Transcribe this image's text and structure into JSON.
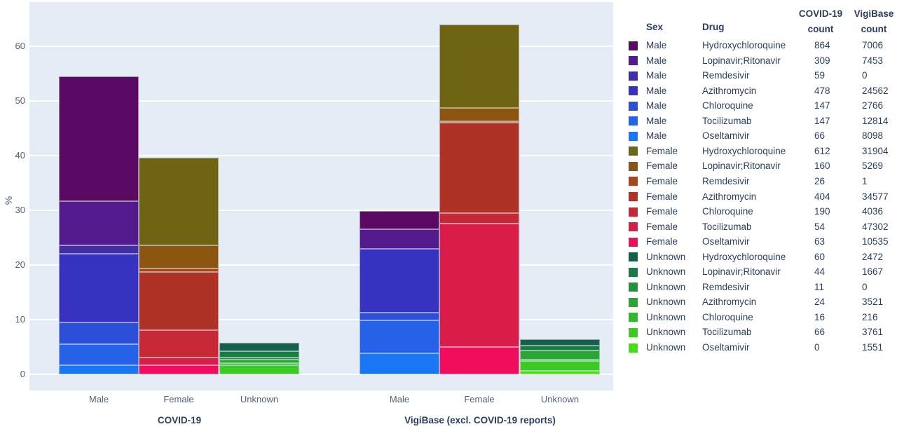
{
  "chart_data": {
    "type": "bar",
    "stacked": true,
    "title": "",
    "ylabel": "%",
    "yticks": [
      0,
      10,
      20,
      30,
      40,
      50,
      60
    ],
    "ylim": [
      -2.9,
      68.1
    ],
    "grid": true,
    "legend_position": "right",
    "groups": [
      "Male",
      "Female",
      "Unknown"
    ],
    "drugs": [
      "Hydroxychloroquine",
      "Lopinavir;Ritonavir",
      "Remdesivir",
      "Azithromycin",
      "Chloroquine",
      "Tocilizumab",
      "Oseltamivir"
    ],
    "stack_order_bottom_to_top": [
      "Oseltamivir",
      "Tocilizumab",
      "Chloroquine",
      "Azithromycin",
      "Remdesivir",
      "Lopinavir;Ritonavir",
      "Hydroxychloroquine"
    ],
    "facets": [
      {
        "title": "COVID-19",
        "count_key": "covid_count",
        "categories": [
          "Male",
          "Female",
          "Unknown"
        ]
      },
      {
        "title": "VigiBase (excl. COVID-19 reports)",
        "count_key": "vigibase_count",
        "categories": [
          "Male",
          "Female",
          "Unknown"
        ]
      }
    ],
    "bar_height_rule": "segment % = count / sum of all counts in facet * 100",
    "rows": [
      {
        "sex": "Male",
        "drug": "Hydroxychloroquine",
        "covid_count": 864,
        "vigibase_count": 7006,
        "color": "#5a0a63"
      },
      {
        "sex": "Male",
        "drug": "Lopinavir;Ritonavir",
        "covid_count": 309,
        "vigibase_count": 7453,
        "color": "#521a8c"
      },
      {
        "sex": "Male",
        "drug": "Remdesivir",
        "covid_count": 59,
        "vigibase_count": 0,
        "color": "#432da3"
      },
      {
        "sex": "Male",
        "drug": "Azithromycin",
        "covid_count": 478,
        "vigibase_count": 24562,
        "color": "#3732c0"
      },
      {
        "sex": "Male",
        "drug": "Chloroquine",
        "covid_count": 147,
        "vigibase_count": 2766,
        "color": "#2c4fd8"
      },
      {
        "sex": "Male",
        "drug": "Tocilizumab",
        "covid_count": 147,
        "vigibase_count": 12814,
        "color": "#2562e8"
      },
      {
        "sex": "Male",
        "drug": "Oseltamivir",
        "covid_count": 66,
        "vigibase_count": 8098,
        "color": "#1a76f2"
      },
      {
        "sex": "Female",
        "drug": "Hydroxychloroquine",
        "covid_count": 612,
        "vigibase_count": 31904,
        "color": "#6e6414"
      },
      {
        "sex": "Female",
        "drug": "Lopinavir;Ritonavir",
        "covid_count": 160,
        "vigibase_count": 5269,
        "color": "#8c550f"
      },
      {
        "sex": "Female",
        "drug": "Remdesivir",
        "covid_count": 26,
        "vigibase_count": 1,
        "color": "#a4471d"
      },
      {
        "sex": "Female",
        "drug": "Azithromycin",
        "covid_count": 404,
        "vigibase_count": 34577,
        "color": "#ae3326"
      },
      {
        "sex": "Female",
        "drug": "Chloroquine",
        "covid_count": 190,
        "vigibase_count": 4036,
        "color": "#c62836"
      },
      {
        "sex": "Female",
        "drug": "Tocilizumab",
        "covid_count": 54,
        "vigibase_count": 47302,
        "color": "#da1c48"
      },
      {
        "sex": "Female",
        "drug": "Oseltamivir",
        "covid_count": 63,
        "vigibase_count": 10535,
        "color": "#f10c5e"
      },
      {
        "sex": "Unknown",
        "drug": "Hydroxychloroquine",
        "covid_count": 60,
        "vigibase_count": 2472,
        "color": "#14604a"
      },
      {
        "sex": "Unknown",
        "drug": "Lopinavir;Ritonavir",
        "covid_count": 44,
        "vigibase_count": 1667,
        "color": "#187c43"
      },
      {
        "sex": "Unknown",
        "drug": "Remdesivir",
        "covid_count": 11,
        "vigibase_count": 0,
        "color": "#20943a"
      },
      {
        "sex": "Unknown",
        "drug": "Azithromycin",
        "covid_count": 24,
        "vigibase_count": 3521,
        "color": "#28a732"
      },
      {
        "sex": "Unknown",
        "drug": "Chloroquine",
        "covid_count": 16,
        "vigibase_count": 216,
        "color": "#31b72b"
      },
      {
        "sex": "Unknown",
        "drug": "Tocilizumab",
        "covid_count": 66,
        "vigibase_count": 3761,
        "color": "#3cc924"
      },
      {
        "sex": "Unknown",
        "drug": "Oseltamivir",
        "covid_count": 0,
        "vigibase_count": 1551,
        "color": "#49dc1c"
      }
    ]
  },
  "legend": {
    "headers": {
      "sex": "Sex",
      "drug": "Drug",
      "covid_line1": "COVID-19",
      "covid_line2": "count",
      "vigibase_line1": "VigiBase",
      "vigibase_line2": "count"
    }
  },
  "colors": {
    "plot_background": "#e5ecf6",
    "gridline": "#ffffff",
    "axis_text": "#4c617c",
    "label_text": "#2a3f5f"
  }
}
